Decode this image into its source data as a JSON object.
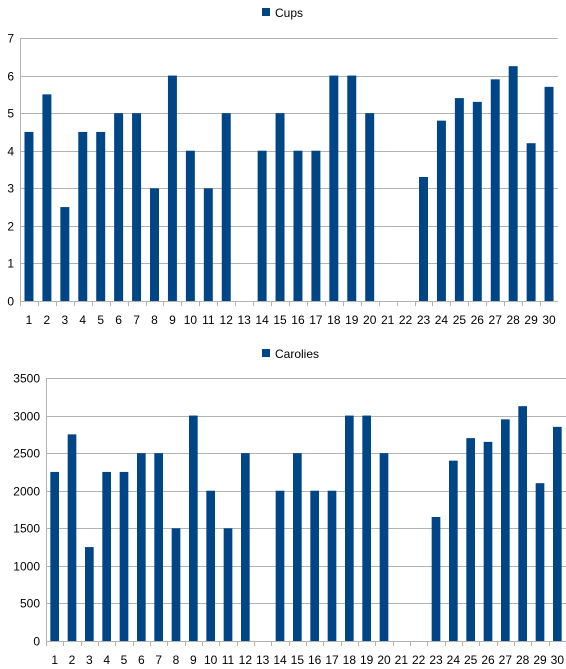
{
  "colors": {
    "bar": "#004586",
    "grid": "#b3b3b3",
    "axis": "#b3b3b3"
  },
  "chart_data": [
    {
      "type": "bar",
      "legend": "Cups",
      "legend_position": "top",
      "grid": true,
      "categories": [
        "1",
        "2",
        "3",
        "4",
        "5",
        "6",
        "7",
        "8",
        "9",
        "10",
        "11",
        "12",
        "13",
        "14",
        "15",
        "16",
        "17",
        "18",
        "19",
        "20",
        "21",
        "22",
        "23",
        "24",
        "25",
        "26",
        "27",
        "28",
        "29",
        "30"
      ],
      "series": [
        {
          "name": "Cups",
          "values": [
            4.5,
            5.5,
            2.5,
            4.5,
            4.5,
            5,
            5,
            3,
            6,
            4,
            3,
            5,
            0,
            4,
            5,
            4,
            4,
            6,
            6,
            5,
            0,
            0,
            3.3,
            4.8,
            5.4,
            5.3,
            5.9,
            6.25,
            4.2,
            5.7
          ]
        }
      ],
      "ylim": [
        0,
        7
      ],
      "yticks": [
        "0",
        "1",
        "2",
        "3",
        "4",
        "5",
        "6",
        "7"
      ]
    },
    {
      "type": "bar",
      "legend": "Carolies",
      "legend_position": "top",
      "grid": true,
      "categories": [
        "1",
        "2",
        "3",
        "4",
        "5",
        "6",
        "7",
        "8",
        "9",
        "10",
        "11",
        "12",
        "13",
        "14",
        "15",
        "16",
        "17",
        "18",
        "19",
        "20",
        "21",
        "22",
        "23",
        "24",
        "25",
        "26",
        "27",
        "28",
        "29",
        "30"
      ],
      "series": [
        {
          "name": "Carolies",
          "values": [
            2250,
            2750,
            1250,
            2250,
            2250,
            2500,
            2500,
            1500,
            3000,
            2000,
            1500,
            2500,
            0,
            2000,
            2500,
            2000,
            2000,
            3000,
            3000,
            2500,
            0,
            0,
            1650,
            2400,
            2700,
            2650,
            2950,
            3125,
            2100,
            2850
          ]
        }
      ],
      "ylim": [
        0,
        3500
      ],
      "yticks": [
        "0",
        "500",
        "1000",
        "1500",
        "2000",
        "2500",
        "3000",
        "3500"
      ]
    }
  ]
}
